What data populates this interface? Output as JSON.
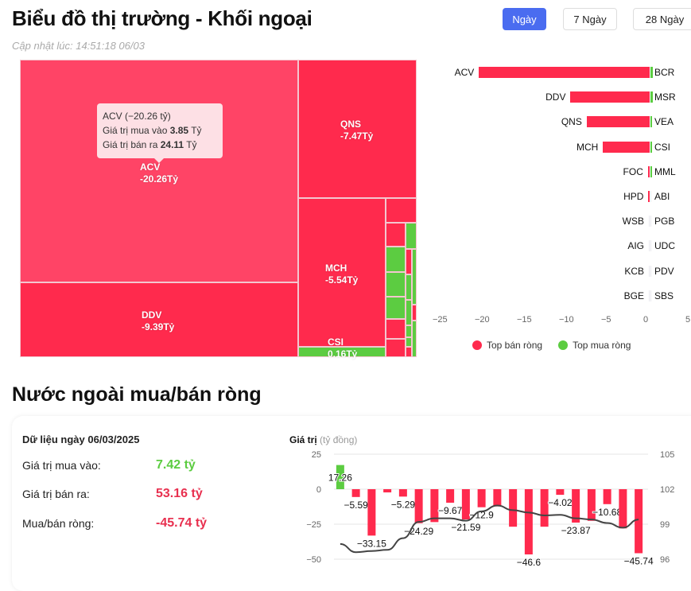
{
  "header": {
    "title": "Biểu đồ thị trường - Khối ngoại",
    "updated": "Cập nhật lúc: 14:51:18 06/03",
    "ranges": [
      "Ngày",
      "7 Ngày",
      "28 Ngày"
    ],
    "active_range": "Ngày"
  },
  "colors": {
    "sell": "#ff2a4d",
    "sell_light": "#ff4466",
    "buy": "#5ccc41",
    "accent": "#4a6cf0"
  },
  "treemap": {
    "cells": [
      {
        "symbol": "ACV",
        "value": "-20.26Tỷ"
      },
      {
        "symbol": "DDV",
        "value": "-9.39Tỷ"
      },
      {
        "symbol": "QNS",
        "value": "-7.47Tỷ"
      },
      {
        "symbol": "MCH",
        "value": "-5.54Tỷ"
      },
      {
        "symbol": "CSI",
        "value": "0.16Tỷ"
      }
    ],
    "tooltip": {
      "title": "ACV (−20.26 tỷ)",
      "buy_label": "Giá trị mua vào",
      "buy_value": "3.85",
      "sell_label": "Giá trị bán ra",
      "sell_value": "24.11",
      "unit": "Tỷ"
    }
  },
  "chart_data": [
    {
      "type": "bar",
      "orientation": "horizontal",
      "sell_symbols": [
        "ACV",
        "DDV",
        "QNS",
        "MCH",
        "FOC",
        "HPD",
        "WSB",
        "AIG",
        "KCB",
        "BGE"
      ],
      "sell_values": [
        -20.26,
        -9.39,
        -7.47,
        -5.54,
        -0.2,
        -0.15,
        -0.05,
        -0.03,
        -0.03,
        -0.03
      ],
      "buy_symbols": [
        "BCR",
        "MSR",
        "VEA",
        "CSI",
        "MML",
        "ABI",
        "PGB",
        "UDC",
        "PDV",
        "SBS"
      ],
      "buy_values": [
        0.3,
        0.3,
        0.2,
        0.16,
        0.15,
        0.05,
        0.03,
        0.03,
        0.03,
        0.03
      ],
      "xlim": [
        -25,
        5
      ],
      "xticks": [
        "−25",
        "−20",
        "−15",
        "−10",
        "−5",
        "0",
        "5"
      ],
      "legend": [
        "Top bán ròng",
        "Top mua ròng"
      ],
      "legend_placement": "bottom"
    },
    {
      "type": "bar+line",
      "ylabel": "Giá trị",
      "ylabel_unit": "(tỷ đồng)",
      "values": [
        17.26,
        -5.59,
        -33.15,
        -2.3,
        -5.29,
        -24.29,
        -23.5,
        -9.67,
        -21.59,
        -12.9,
        -12.3,
        -26.8,
        -46.6,
        -26.8,
        -4.02,
        -23.87,
        -22.6,
        -10.68,
        -28,
        -45.74
      ],
      "labels": [
        "17.26",
        "−5.59",
        "−33.15",
        "",
        "−5.29",
        "−24.29",
        "",
        "−9.67",
        "−21.59",
        "−12.9",
        "",
        "",
        "−46.6",
        "",
        "−4.02",
        "−23.87",
        "",
        "−10.68",
        "",
        "−45.74"
      ],
      "line_values": [
        97.3,
        96.6,
        96.7,
        96.8,
        97.8,
        99.2,
        99.5,
        99.5,
        99.3,
        100.1,
        100.6,
        100.2,
        100.0,
        99.75,
        99.8,
        99.5,
        99.4,
        99.1,
        98.7,
        99.4
      ],
      "ylim": [
        -50,
        25
      ],
      "yticks": [
        "25",
        "0",
        "−25",
        "−50"
      ],
      "y2lim": [
        96,
        105
      ],
      "y2ticks": [
        "105",
        "102",
        "99",
        "96"
      ],
      "grid": true
    }
  ],
  "section": {
    "title": "Nước ngoài mua/bán ròng",
    "date_label": "Dữ liệu ngày 06/03/2025",
    "rows": [
      {
        "label": "Giá trị mua vào:",
        "value": "7.42 tỷ"
      },
      {
        "label": "Giá trị bán ra:",
        "value": "53.16 tỷ"
      },
      {
        "label": "Mua/bán ròng:",
        "value": "-45.74 tỷ"
      }
    ]
  }
}
